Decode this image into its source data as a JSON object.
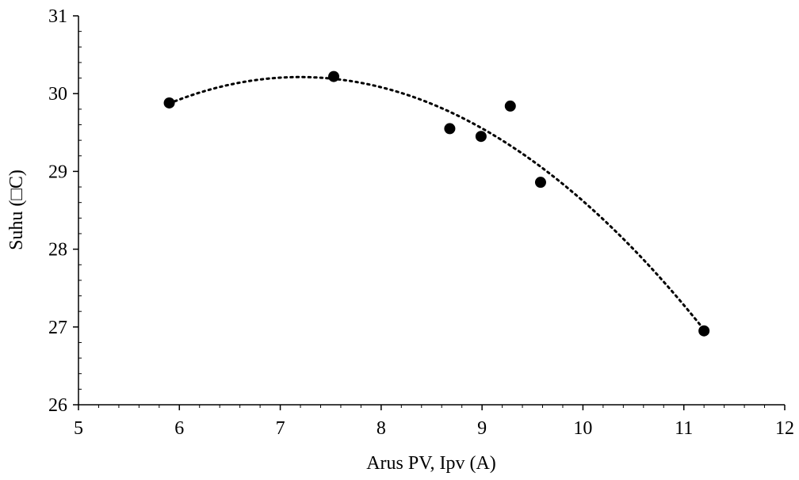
{
  "chart_data": {
    "type": "scatter",
    "title": "",
    "xlabel": "Arus PV, Ipv (A)",
    "ylabel": "Suhu (□C)",
    "xlim": [
      5,
      12
    ],
    "ylim": [
      26,
      31
    ],
    "x_ticks": [
      "5",
      "6",
      "7",
      "8",
      "9",
      "10",
      "11",
      "12"
    ],
    "y_ticks": [
      "26",
      "27",
      "28",
      "29",
      "30",
      "31"
    ],
    "grid": false,
    "legend": "none",
    "series": [
      {
        "marker": "filled-circle",
        "color": "#000000",
        "points": [
          {
            "x": 5.9,
            "y": 29.88
          },
          {
            "x": 7.53,
            "y": 30.22
          },
          {
            "x": 8.68,
            "y": 29.55
          },
          {
            "x": 8.99,
            "y": 29.45
          },
          {
            "x": 9.28,
            "y": 29.84
          },
          {
            "x": 9.58,
            "y": 28.86
          },
          {
            "x": 11.2,
            "y": 26.95
          }
        ]
      }
    ],
    "trendline": {
      "type": "polynomial",
      "order": 2,
      "style": "dotted",
      "color": "#000000",
      "x_range": [
        5.9,
        11.2
      ]
    }
  }
}
